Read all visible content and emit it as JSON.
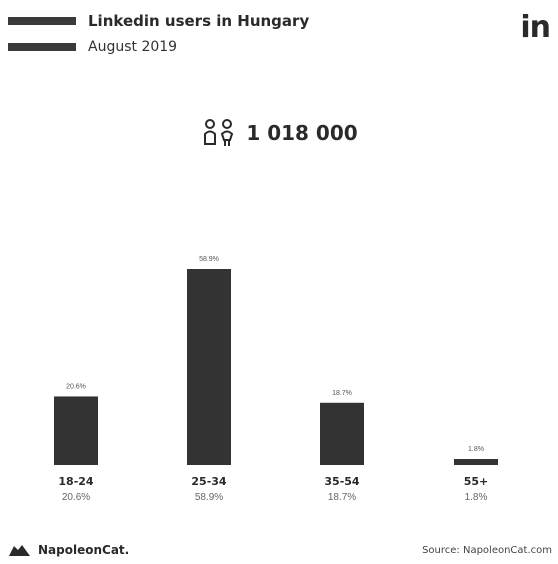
{
  "header": {
    "title": "Linkedin users in Hungary",
    "subtitle": "August 2019"
  },
  "brand_logo_text": "in",
  "total_users": "1 018 000",
  "chart_data": {
    "type": "bar",
    "categories": [
      "18-24",
      "25-34",
      "35-54",
      "55+"
    ],
    "values": [
      20.6,
      58.9,
      18.7,
      1.8
    ],
    "value_labels": [
      "20.6%",
      "58.9%",
      "18.7%",
      "1.8%"
    ],
    "bar_color": "#333333",
    "ylim": [
      0,
      58.9
    ]
  },
  "footer": {
    "logo_text": "NapoleonCat.",
    "source": "Source: NapoleonCat.com"
  }
}
